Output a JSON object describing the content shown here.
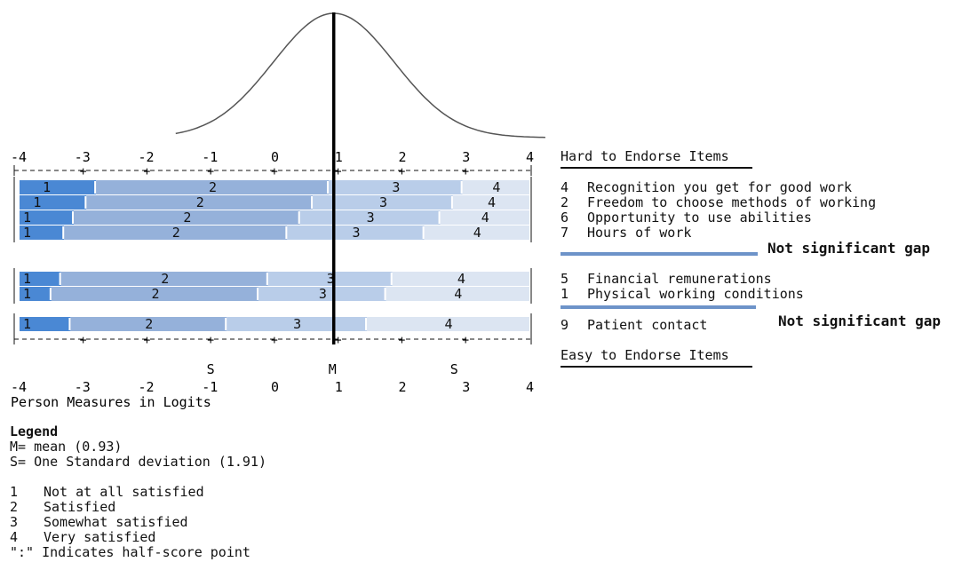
{
  "chart_data": {
    "type": "bar",
    "axis": {
      "min": -4,
      "max": 4,
      "ticks": [
        "-4",
        "-3",
        "-2",
        "-1",
        "0",
        "1",
        "2",
        "3",
        "4"
      ],
      "label": "Person Measures in Logits"
    },
    "markers": [
      {
        "label": "S",
        "value": -0.98
      },
      {
        "label": "M",
        "value": 0.93
      },
      {
        "label": "S",
        "value": 2.84
      }
    ],
    "mean": 0.93,
    "items": [
      {
        "id": "4",
        "label": "Recognition you get for good work",
        "segments": [
          {
            "cat": "1",
            "start": -4,
            "end": -2.8
          },
          {
            "cat": "2",
            "start": -2.8,
            "end": 0.85
          },
          {
            "cat": "3",
            "start": 0.85,
            "end": 2.95
          },
          {
            "cat": "4",
            "start": 2.95,
            "end": 4
          }
        ]
      },
      {
        "id": "2",
        "label": "Freedom to choose methods of working",
        "segments": [
          {
            "cat": "1",
            "start": -4,
            "end": -2.95
          },
          {
            "cat": "2",
            "start": -2.95,
            "end": 0.6
          },
          {
            "cat": "3",
            "start": 0.6,
            "end": 2.8
          },
          {
            "cat": "4",
            "start": 2.8,
            "end": 4
          }
        ]
      },
      {
        "id": "6",
        "label": "Opportunity to use abilities",
        "segments": [
          {
            "cat": "1",
            "start": -4,
            "end": -3.15
          },
          {
            "cat": "2",
            "start": -3.15,
            "end": 0.4
          },
          {
            "cat": "3",
            "start": 0.4,
            "end": 2.6
          },
          {
            "cat": "4",
            "start": 2.6,
            "end": 4
          }
        ]
      },
      {
        "id": "7",
        "label": "Hours of work",
        "segments": [
          {
            "cat": "1",
            "start": -4,
            "end": -3.3
          },
          {
            "cat": "2",
            "start": -3.3,
            "end": 0.2
          },
          {
            "cat": "3",
            "start": 0.2,
            "end": 2.35
          },
          {
            "cat": "4",
            "start": 2.35,
            "end": 4
          }
        ]
      },
      {
        "id": "5",
        "label": "Financial remunerations",
        "segments": [
          {
            "cat": "1",
            "start": -4,
            "end": -3.35
          },
          {
            "cat": "2",
            "start": -3.35,
            "end": -0.1
          },
          {
            "cat": "3",
            "start": -0.1,
            "end": 1.85
          },
          {
            "cat": "4",
            "start": 1.85,
            "end": 4
          }
        ]
      },
      {
        "id": "1",
        "label": "Physical working conditions",
        "segments": [
          {
            "cat": "1",
            "start": -4,
            "end": -3.5
          },
          {
            "cat": "2",
            "start": -3.5,
            "end": -0.25
          },
          {
            "cat": "3",
            "start": -0.25,
            "end": 1.75
          },
          {
            "cat": "4",
            "start": 1.75,
            "end": 4
          }
        ]
      },
      {
        "id": "9",
        "label": "Patient contact",
        "segments": [
          {
            "cat": "1",
            "start": -4,
            "end": -3.2
          },
          {
            "cat": "2",
            "start": -3.2,
            "end": -0.75
          },
          {
            "cat": "3",
            "start": -0.75,
            "end": 1.45
          },
          {
            "cat": "4",
            "start": 1.45,
            "end": 4
          }
        ]
      }
    ],
    "groups": [
      [
        0,
        1,
        2,
        3
      ],
      [
        4,
        5
      ],
      [
        6
      ]
    ],
    "category_colors": {
      "1": "#4a88d4",
      "2": "#95b1da",
      "3": "#b9cde9",
      "4": "#dce5f2"
    },
    "separator": ":"
  },
  "side": {
    "hard_title": "Hard to Endorse Items",
    "easy_title": "Easy to Endorse Items",
    "group1": [
      {
        "num": "4",
        "text": "Recognition you get for good work"
      },
      {
        "num": "2",
        "text": "Freedom to choose methods of working"
      },
      {
        "num": "6",
        "text": "Opportunity to use abilities"
      },
      {
        "num": "7",
        "text": "Hours of work"
      }
    ],
    "gap1": "Not significant gap",
    "group2": [
      {
        "num": "5",
        "text": "Financial remunerations"
      },
      {
        "num": "1",
        "text": "Physical working conditions"
      }
    ],
    "gap2": "Not significant gap",
    "group3": [
      {
        "num": "9",
        "text": "Patient contact"
      }
    ]
  },
  "legend": {
    "title": "Legend",
    "mean_line": "M= mean (0.93)",
    "sd_line": "S= One Standard deviation (1.91)",
    "categories": [
      {
        "num": "1",
        "text": "Not at all satisfied"
      },
      {
        "num": "2",
        "text": "Satisfied"
      },
      {
        "num": "3",
        "text": "Somewhat satisfied"
      },
      {
        "num": "4",
        "text": "Very satisfied"
      }
    ],
    "colon_note": "\":\" Indicates half-score point"
  },
  "colors": {
    "gap_line": "#6d93c9",
    "axis": "#111111",
    "curve": "#555555"
  }
}
